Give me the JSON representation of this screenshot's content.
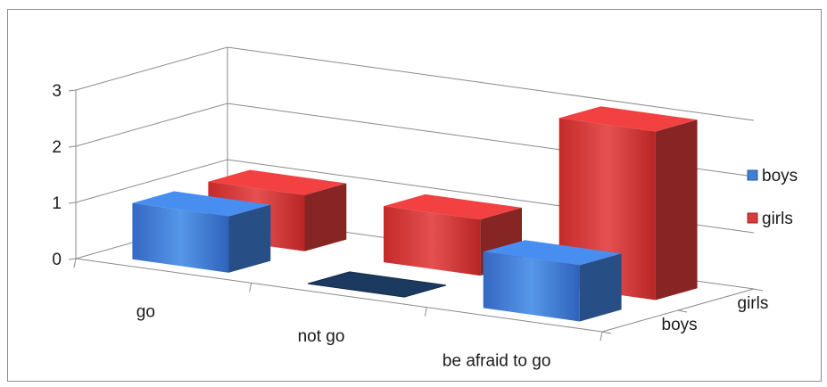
{
  "chart_data": {
    "type": "bar",
    "style": "3d-column",
    "title": "",
    "xlabel": "",
    "ylabel": "",
    "categories": [
      "go",
      "not go",
      "be afraid to go"
    ],
    "depth_labels": [
      "boys",
      "girls"
    ],
    "y_ticks": [
      "0",
      "1",
      "2",
      "3"
    ],
    "ylim": [
      0,
      3
    ],
    "grid": true,
    "legend_position": "right",
    "series": [
      {
        "name": "boys",
        "values": [
          1,
          0,
          1
        ],
        "color": "#3f7fd6"
      },
      {
        "name": "girls",
        "values": [
          1,
          1,
          3
        ],
        "color": "#d93a3a"
      }
    ]
  }
}
